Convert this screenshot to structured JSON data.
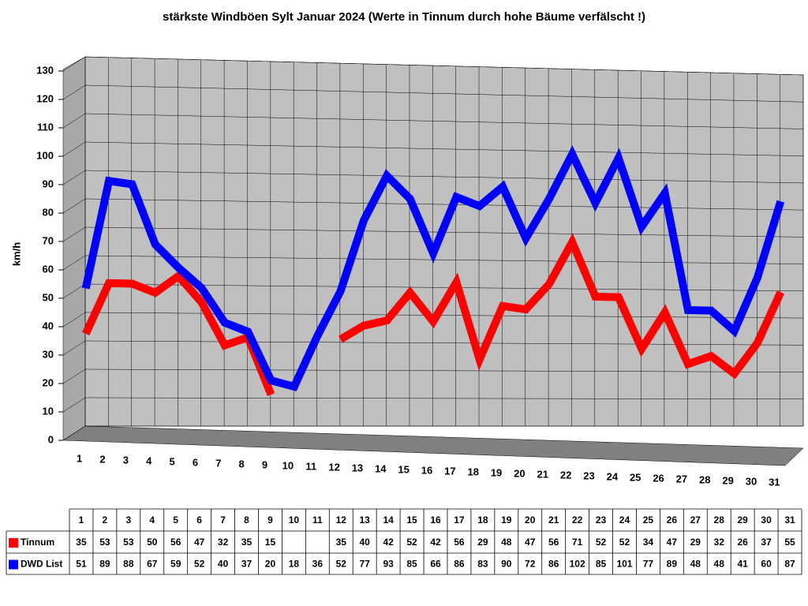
{
  "chart_data": {
    "type": "line",
    "title": "stärkste Windböen Sylt Januar 2024 (Werte in Tinnum durch hohe Bäume verfälscht !)",
    "y_label": "km/h",
    "categories": [
      "1",
      "2",
      "3",
      "4",
      "5",
      "6",
      "7",
      "8",
      "9",
      "10",
      "11",
      "12",
      "13",
      "14",
      "15",
      "16",
      "17",
      "18",
      "19",
      "20",
      "21",
      "22",
      "23",
      "24",
      "25",
      "26",
      "27",
      "28",
      "29",
      "30",
      "31"
    ],
    "series": [
      {
        "name": "Tinnum",
        "color": "#ff0000",
        "values": [
          35,
          53,
          53,
          50,
          56,
          47,
          32,
          35,
          15,
          null,
          null,
          35,
          40,
          42,
          52,
          42,
          56,
          29,
          48,
          47,
          56,
          71,
          52,
          52,
          34,
          47,
          29,
          32,
          26,
          37,
          55
        ]
      },
      {
        "name": "DWD List",
        "color": "#0000ff",
        "values": [
          51,
          89,
          88,
          67,
          59,
          52,
          40,
          37,
          20,
          18,
          36,
          52,
          77,
          93,
          85,
          66,
          86,
          83,
          90,
          72,
          86,
          102,
          85,
          101,
          77,
          89,
          48,
          48,
          41,
          60,
          87
        ]
      }
    ],
    "ylim": [
      0,
      130
    ],
    "yticks": [
      0,
      10,
      20,
      30,
      40,
      50,
      60,
      70,
      80,
      90,
      100,
      110,
      120,
      130
    ],
    "grid": true,
    "data_table": true
  }
}
